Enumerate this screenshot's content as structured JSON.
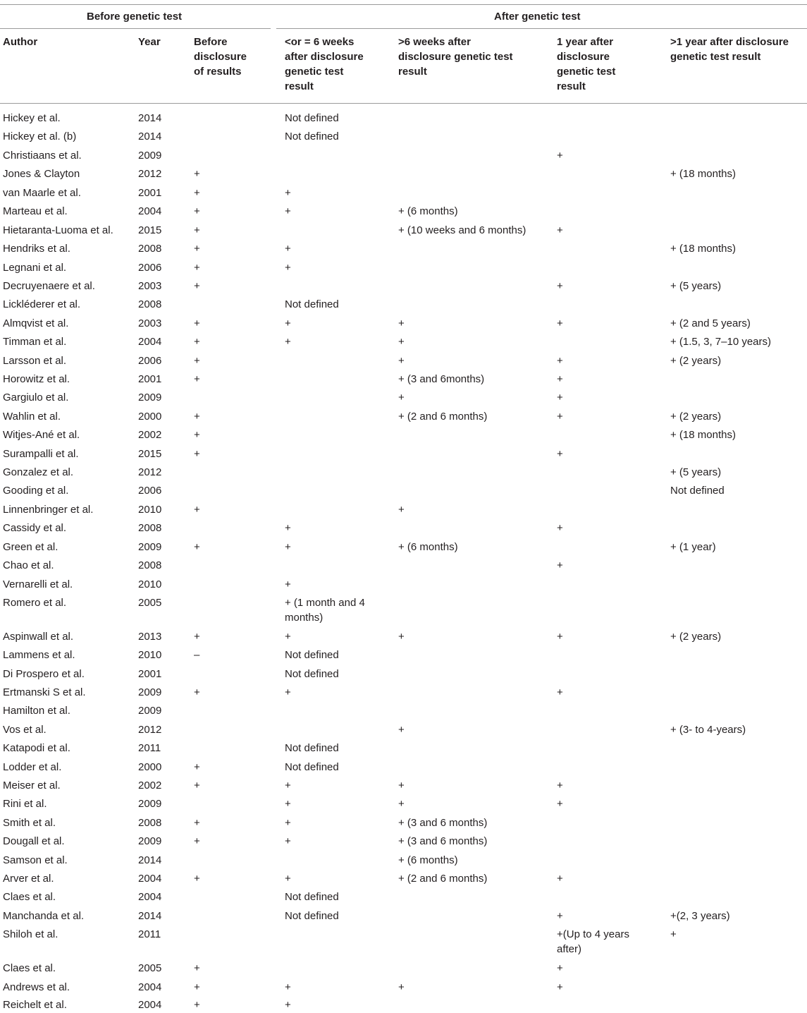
{
  "groups": {
    "before": "Before genetic test",
    "after": "After genetic test"
  },
  "columns": [
    {
      "key": "author",
      "lines": [
        "Author"
      ]
    },
    {
      "key": "year",
      "lines": [
        "Year"
      ]
    },
    {
      "key": "before",
      "lines": [
        "Before",
        "disclosure",
        "of results"
      ]
    },
    {
      "key": "w6",
      "lines": [
        "<or = 6 weeks",
        "after disclosure",
        "genetic test",
        "result"
      ]
    },
    {
      "key": "gt6w",
      "lines": [
        ">6 weeks after",
        "disclosure genetic test",
        "result"
      ]
    },
    {
      "key": "y1",
      "lines": [
        "1 year after",
        "disclosure",
        "genetic test",
        "result"
      ]
    },
    {
      "key": "gt1y",
      "lines": [
        ">1 year after disclosure",
        "genetic test result"
      ]
    }
  ],
  "rows": [
    [
      "Hickey et al.",
      "2014",
      "",
      "Not defined",
      "",
      "",
      ""
    ],
    [
      "Hickey et al. (b)",
      "2014",
      "",
      "Not defined",
      "",
      "",
      ""
    ],
    [
      "Christiaans et al.",
      "2009",
      "",
      "",
      "",
      "+",
      ""
    ],
    [
      "Jones & Clayton",
      "2012",
      "+",
      "",
      "",
      "",
      "+ (18 months)"
    ],
    [
      "van Maarle et al.",
      "2001",
      "+",
      "+",
      "",
      "",
      ""
    ],
    [
      "Marteau et al.",
      "2004",
      "+",
      "+",
      "+ (6 months)",
      "",
      ""
    ],
    [
      "Hietaranta-Luoma et al.",
      "2015",
      "+",
      "",
      "+ (10 weeks and 6 months)",
      "+",
      ""
    ],
    [
      "Hendriks et al.",
      "2008",
      "+",
      "+",
      "",
      "",
      "+ (18 months)"
    ],
    [
      "Legnani et al.",
      "2006",
      "+",
      "+",
      "",
      "",
      ""
    ],
    [
      "Decruyenaere et al.",
      "2003",
      "+",
      "",
      "",
      "+",
      "+ (5 years)"
    ],
    [
      "Lickléderer et al.",
      "2008",
      "",
      "Not defined",
      "",
      "",
      ""
    ],
    [
      "Almqvist et al.",
      "2003",
      "+",
      "+",
      "+",
      "+",
      "+ (2 and 5 years)"
    ],
    [
      "Timman et al.",
      "2004",
      "+",
      "+",
      "+",
      "",
      "+ (1.5, 3, 7–10 years)"
    ],
    [
      "Larsson et al.",
      "2006",
      "+",
      "",
      "+",
      "+",
      "+ (2 years)"
    ],
    [
      "Horowitz et al.",
      "2001",
      "+",
      "",
      "+ (3 and 6months)",
      "+",
      ""
    ],
    [
      "Gargiulo et al.",
      "2009",
      "",
      "",
      "+",
      "+",
      ""
    ],
    [
      "Wahlin et al.",
      "2000",
      "+",
      "",
      "+ (2 and 6 months)",
      "+",
      "+ (2 years)"
    ],
    [
      "Witjes-Ané et al.",
      "2002",
      "+",
      "",
      "",
      "",
      "+ (18 months)"
    ],
    [
      "Surampalli et al.",
      "2015",
      "+",
      "",
      "",
      "+",
      ""
    ],
    [
      "Gonzalez et al.",
      "2012",
      "",
      "",
      "",
      "",
      "+ (5 years)"
    ],
    [
      "Gooding et al.",
      "2006",
      "",
      "",
      "",
      "",
      "Not defined"
    ],
    [
      "Linnenbringer et al.",
      "2010",
      "+",
      "",
      "+",
      "",
      ""
    ],
    [
      "Cassidy et al.",
      "2008",
      "",
      "+",
      "",
      "+",
      ""
    ],
    [
      "Green et al.",
      "2009",
      "+",
      "+",
      "+ (6 months)",
      "",
      "+ (1 year)"
    ],
    [
      "Chao et al.",
      "2008",
      "",
      "",
      "",
      "+",
      ""
    ],
    [
      "Vernarelli et al.",
      "2010",
      "",
      "+",
      "",
      "",
      ""
    ],
    [
      "Romero et al.",
      "2005",
      "",
      "+ (1 month and 4|months)",
      "",
      "",
      ""
    ],
    [
      "Aspinwall et al.",
      "2013",
      "+",
      "+",
      "+",
      "+",
      "+ (2 years)"
    ],
    [
      "Lammens et al.",
      "2010",
      "–",
      "Not defined",
      "",
      "",
      ""
    ],
    [
      "Di Prospero et al.",
      "2001",
      "",
      "Not defined",
      "",
      "",
      ""
    ],
    [
      "Ertmanski S et al.",
      "2009",
      "+",
      "+",
      "",
      "+",
      ""
    ],
    [
      "Hamilton et al.",
      "2009",
      "",
      "",
      "",
      "",
      ""
    ],
    [
      "Vos et al.",
      "2012",
      "",
      "",
      "+",
      "",
      "+ (3- to 4-years)"
    ],
    [
      "Katapodi et al.",
      "2011",
      "",
      "Not defined",
      "",
      "",
      ""
    ],
    [
      "Lodder et al.",
      "2000",
      "+",
      "Not defined",
      "",
      "",
      ""
    ],
    [
      "Meiser et al.",
      "2002",
      "+",
      "+",
      "+",
      "+",
      ""
    ],
    [
      "Rini et al.",
      "2009",
      "",
      "+",
      "+",
      "+",
      ""
    ],
    [
      "Smith et al.",
      "2008",
      "+",
      "+",
      "+ (3 and 6 months)",
      "",
      ""
    ],
    [
      "Dougall et al.",
      "2009",
      "+",
      "+",
      "+ (3 and 6 months)",
      "",
      ""
    ],
    [
      "Samson et al.",
      "2014",
      "",
      "",
      "+ (6 months)",
      "",
      ""
    ],
    [
      "Arver et al.",
      "2004",
      "+",
      "+",
      "+ (2 and 6 months)",
      "+",
      ""
    ],
    [
      "Claes et al.",
      "2004",
      "",
      "Not defined",
      "",
      "",
      ""
    ],
    [
      "Manchanda et al.",
      "2014",
      "",
      "Not defined",
      "",
      "+",
      "+(2, 3 years)"
    ],
    [
      "Shiloh et al.",
      "2011",
      "",
      "",
      "",
      "+(Up to 4 years|after)",
      "+"
    ],
    [
      "Claes et al.",
      "2005",
      "+",
      "",
      "",
      "+",
      ""
    ],
    [
      "Andrews et al.",
      "2004",
      "+",
      "+",
      "+",
      "+",
      ""
    ],
    [
      "Reichelt et al.",
      "2004",
      "+",
      "+",
      "",
      "",
      ""
    ]
  ]
}
